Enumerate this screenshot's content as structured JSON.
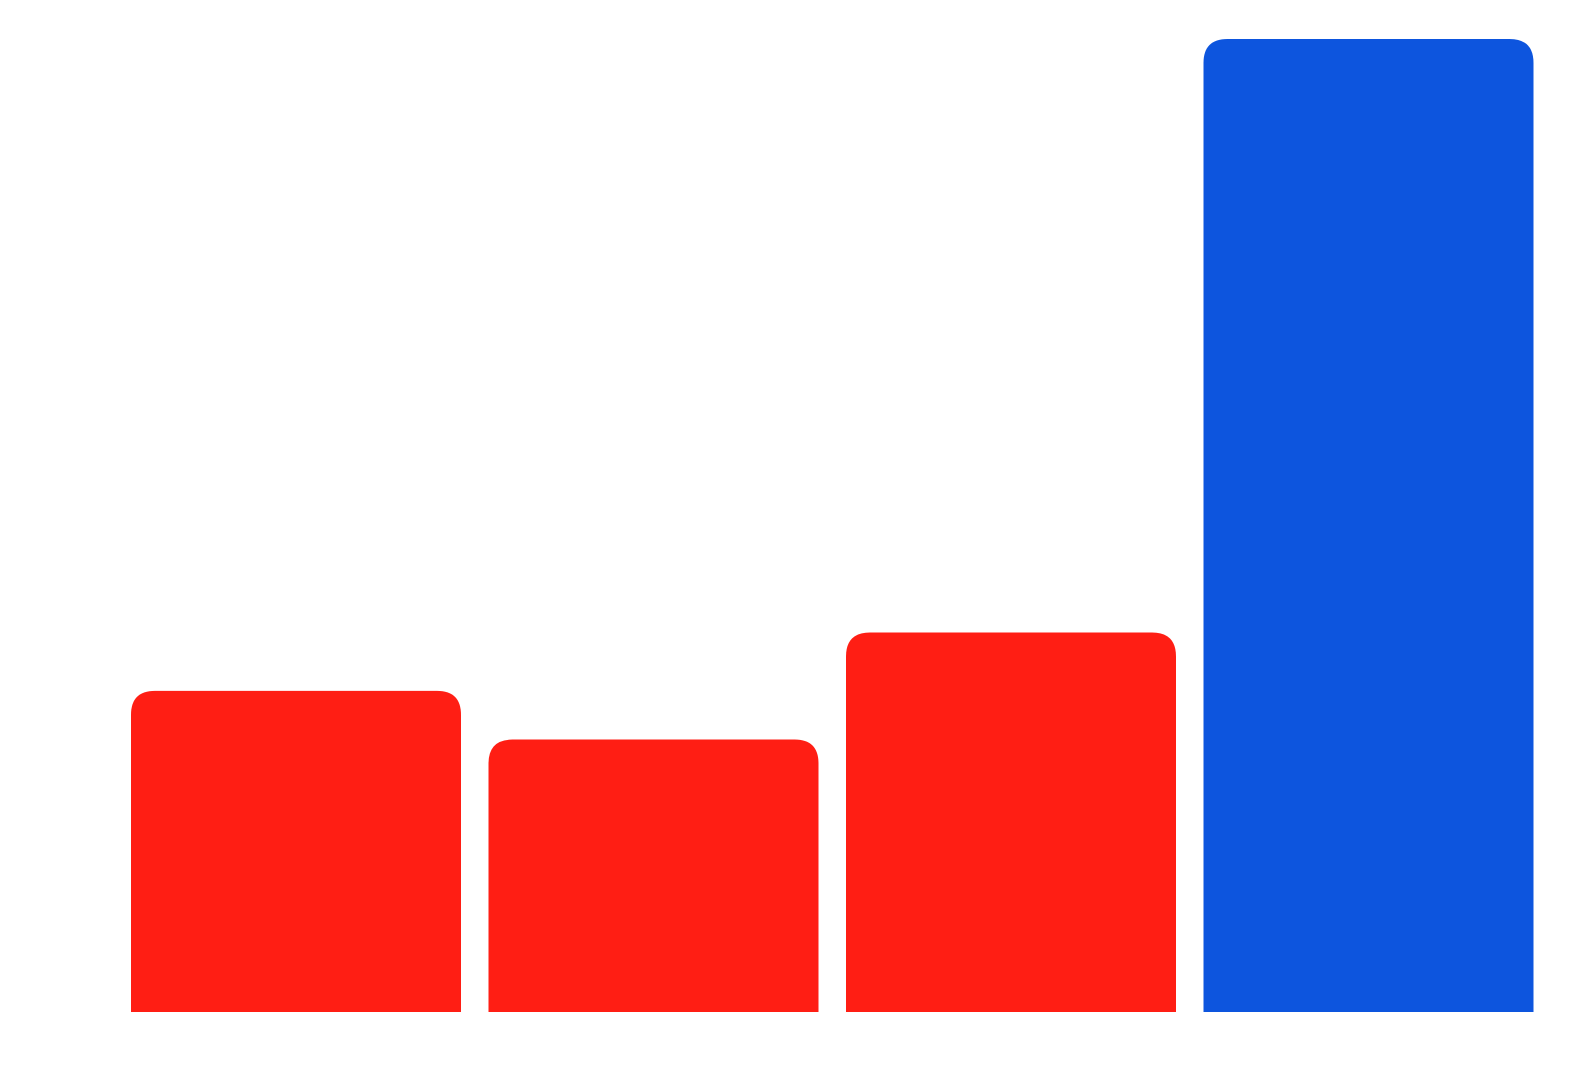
{
  "chart_data": {
    "type": "bar",
    "categories": [
      "",
      "",
      "",
      ""
    ],
    "values": [
      33,
      28,
      39,
      100
    ],
    "ylim": [
      0,
      100
    ],
    "grid": false,
    "legend": "none",
    "colors": [
      "#ff1e14",
      "#ff1e14",
      "#ff1e14",
      "#0d55de"
    ]
  }
}
